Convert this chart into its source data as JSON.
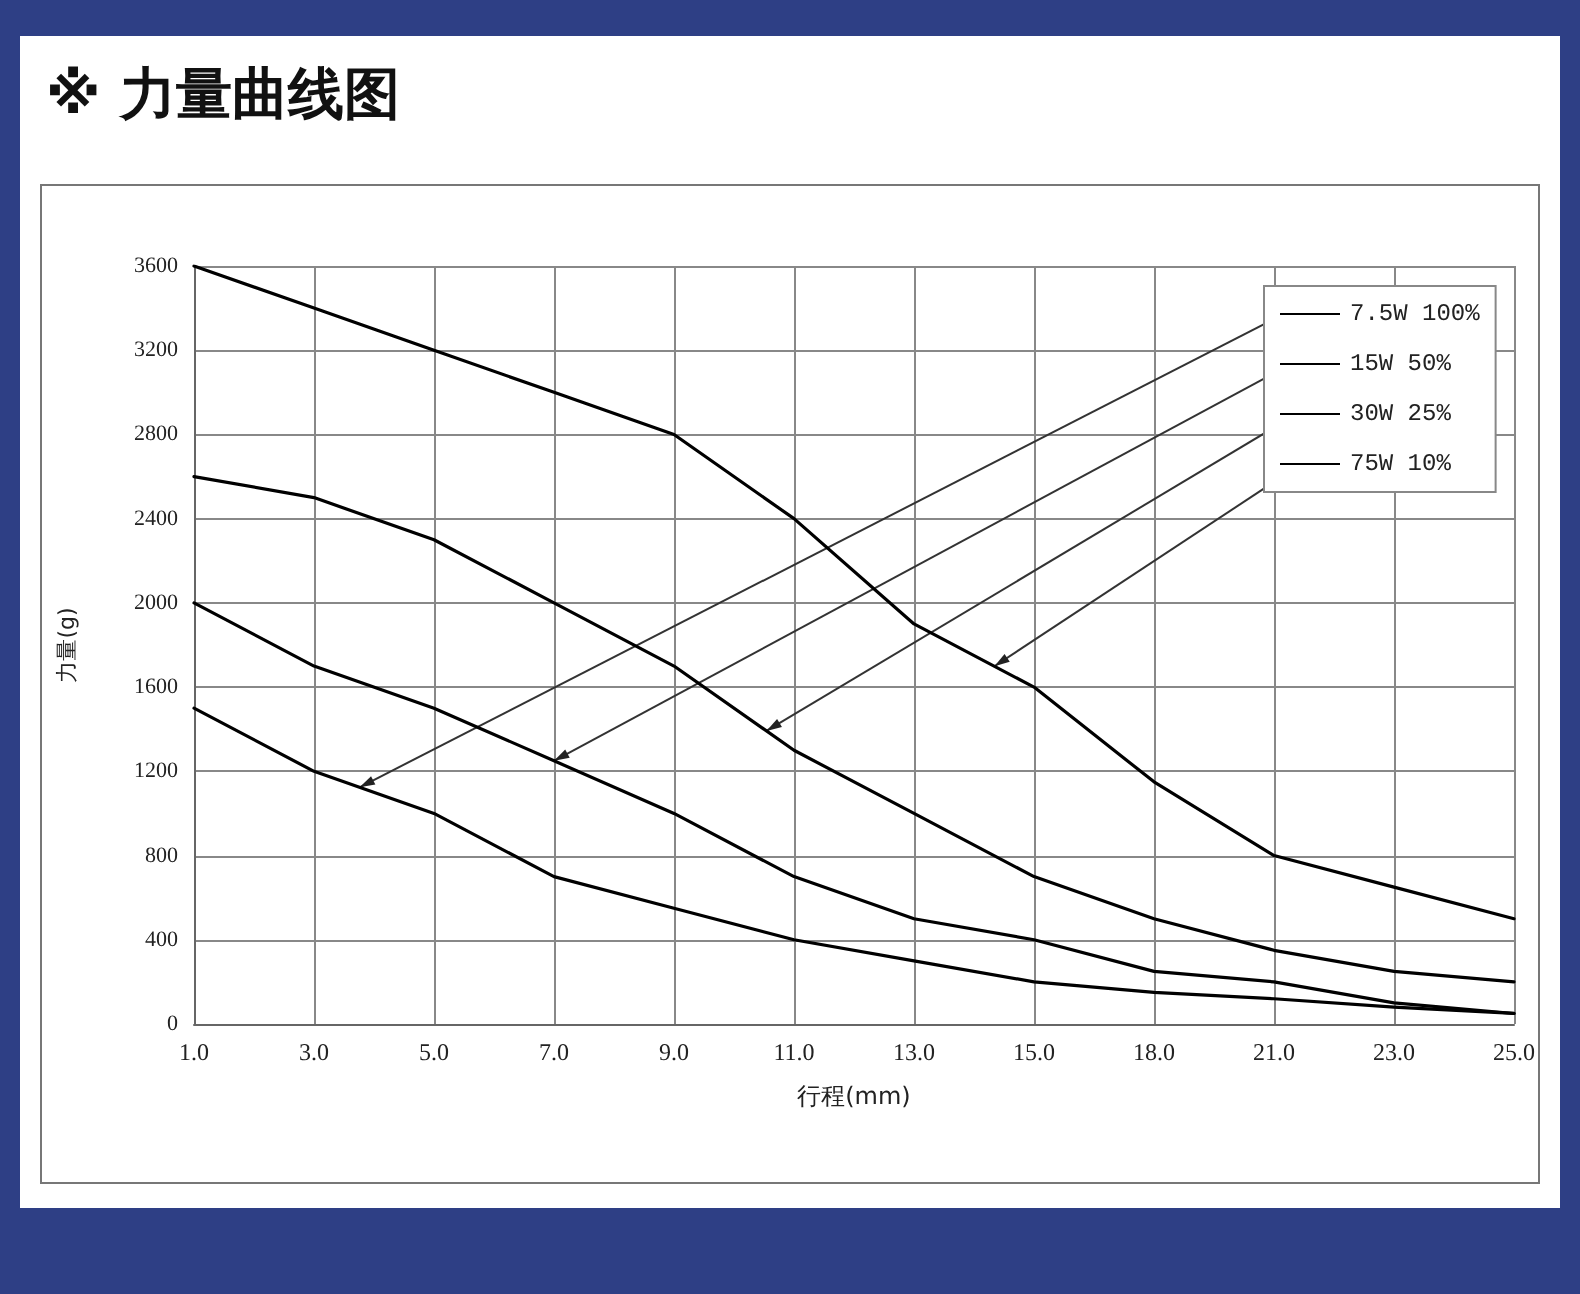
{
  "chart_data": {
    "type": "line",
    "title": "※ 力量曲线图",
    "xlabel": "行程(mm)",
    "ylabel": "力量(g)",
    "categories": [
      "1.0",
      "3.0",
      "5.0",
      "7.0",
      "9.0",
      "11.0",
      "13.0",
      "15.0",
      "18.0",
      "21.0",
      "23.0",
      "25.0"
    ],
    "series": [
      {
        "name": "7.5W 100%",
        "color": "#000000",
        "values": [
          1500,
          1200,
          1000,
          700,
          550,
          400,
          300,
          200,
          150,
          120,
          80,
          50
        ]
      },
      {
        "name": "15W 50%",
        "color": "#000000",
        "values": [
          2000,
          1700,
          1500,
          1250,
          1000,
          700,
          500,
          400,
          250,
          200,
          100,
          50
        ]
      },
      {
        "name": "30W 25%",
        "color": "#000000",
        "values": [
          2600,
          2500,
          2300,
          2000,
          1700,
          1300,
          1000,
          700,
          500,
          350,
          250,
          200
        ]
      },
      {
        "name": "75W 10%",
        "color": "#000000",
        "values": [
          3600,
          3400,
          3200,
          3000,
          2800,
          2400,
          1900,
          1600,
          1150,
          800,
          650,
          500
        ]
      }
    ],
    "ylim": [
      0,
      3600
    ],
    "yticks": [
      0,
      400,
      800,
      1200,
      1600,
      2000,
      2400,
      2800,
      3200,
      3600
    ],
    "grid": true,
    "legend": "top right",
    "marker": "none",
    "line_style": "solid"
  }
}
